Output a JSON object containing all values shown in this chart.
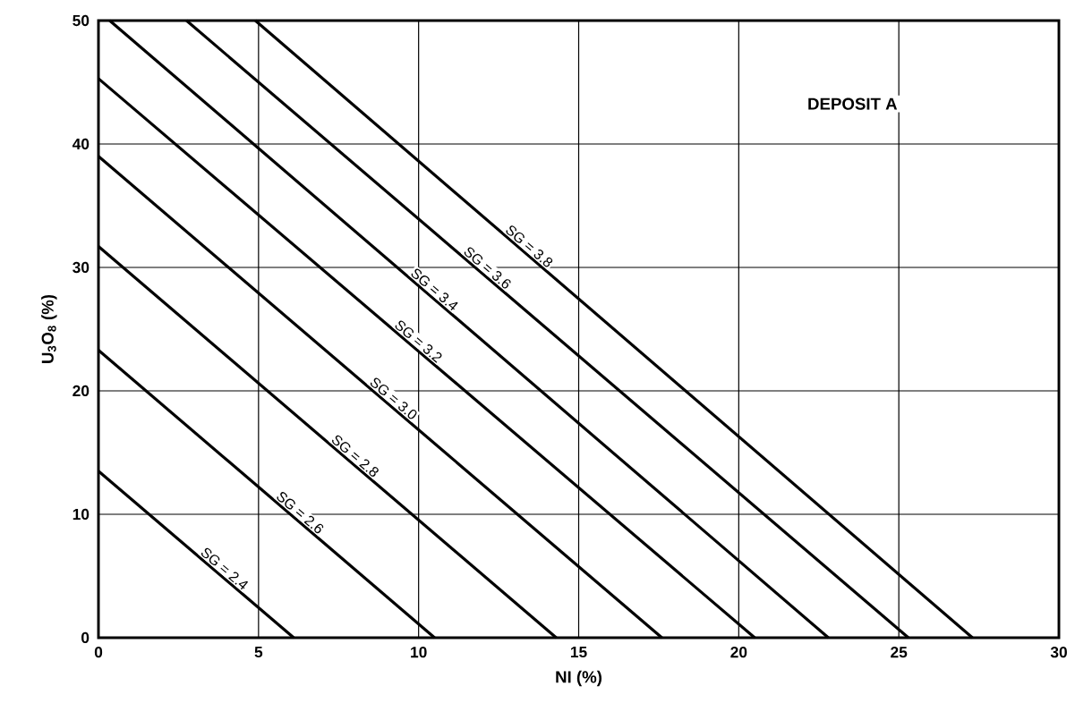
{
  "chart_data": {
    "type": "line",
    "xlabel": "NI (%)",
    "ylabel": "U$_{3}$O$_{8}$ (%)",
    "xlim": [
      0,
      30
    ],
    "ylim": [
      0,
      50
    ],
    "xticks": [
      0,
      5,
      10,
      15,
      20,
      25,
      30
    ],
    "yticks": [
      0,
      10,
      20,
      30,
      40,
      50
    ],
    "grid": true,
    "marker": "none",
    "line_style": "solid",
    "series": [
      {
        "name": "SG = 2.4",
        "color": "#000000",
        "x": [
          0,
          6.1
        ],
        "values": [
          13.5,
          0
        ]
      },
      {
        "name": "SG = 2.6",
        "color": "#000000",
        "x": [
          0,
          10.5
        ],
        "values": [
          23.3,
          0
        ]
      },
      {
        "name": "SG = 2.8",
        "color": "#000000",
        "x": [
          0,
          14.3
        ],
        "values": [
          31.7,
          0
        ]
      },
      {
        "name": "SG = 3.0",
        "color": "#000000",
        "x": [
          0,
          17.6
        ],
        "values": [
          39.0,
          0
        ]
      },
      {
        "name": "SG = 3.2",
        "color": "#000000",
        "x": [
          0,
          20.5
        ],
        "values": [
          45.3,
          0
        ]
      },
      {
        "name": "SG = 3.4",
        "color": "#000000",
        "x": [
          0.35,
          22.8
        ],
        "values": [
          50,
          0
        ]
      },
      {
        "name": "SG = 3.6",
        "color": "#000000",
        "x": [
          2.75,
          25.3
        ],
        "values": [
          50,
          0
        ]
      },
      {
        "name": "SG = 3.8",
        "color": "#000000",
        "x": [
          4.9,
          27.3
        ],
        "values": [
          50,
          0
        ]
      }
    ],
    "annotations": [
      "DEPOSIT A"
    ]
  }
}
